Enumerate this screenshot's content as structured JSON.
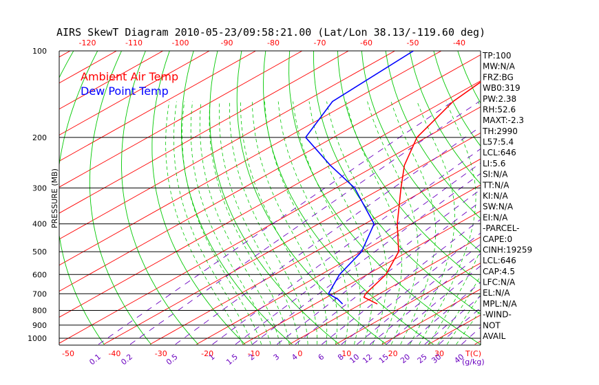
{
  "chart_data": {
    "type": "line",
    "title": "AIRS SkewT Diagram 2010-05-23/09:58:21.00 (Lat/Lon 38.13/-119.60 deg)",
    "ylabel": "PRESSURE (MB)",
    "xlabel_bottom_right": "T(C)",
    "mixing_ratio_unit": "(g/kg)",
    "y_scale": "log",
    "ylim": [
      1050,
      100
    ],
    "xlim_bottom": [
      -50,
      40
    ],
    "pressure_ticks": [
      100,
      200,
      300,
      400,
      500,
      600,
      700,
      800,
      900,
      1000
    ],
    "pressure_tick_labels": [
      "100",
      "200",
      "300",
      "400",
      "500",
      "600",
      "700",
      "800",
      "900",
      "1000"
    ],
    "bottom_temp_ticks": [
      -50,
      -40,
      -30,
      -20,
      -10,
      0,
      10,
      20,
      30
    ],
    "bottom_temp_labels": [
      "-50",
      "-40",
      "-30",
      "-20",
      "-10",
      "0",
      "10",
      "20",
      "30"
    ],
    "top_temp_ticks": [
      -120,
      -110,
      -100,
      -90,
      -80,
      -70,
      -60,
      -50,
      -40
    ],
    "top_temp_labels": [
      "-120",
      "-110",
      "-100",
      "-90",
      "-80",
      "-70",
      "-60",
      "-50",
      "-40"
    ],
    "mixing_ratio_lines": [
      0.1,
      0.2,
      0.5,
      1,
      1.5,
      2,
      3,
      4,
      6,
      8,
      10,
      12,
      15,
      20,
      25,
      30,
      40
    ],
    "mixing_ratio_labels": [
      "0.1",
      "0.2",
      "0.5",
      "1",
      "1.5",
      "2",
      "3",
      "4",
      "6",
      "8",
      "10",
      "12",
      "15",
      "20",
      "25",
      "30",
      "40"
    ],
    "series": [
      {
        "name": "Ambient Air Temp",
        "color": "#ff0000",
        "points": [
          {
            "p": 760,
            "t": 3.5
          },
          {
            "p": 720,
            "t": -2
          },
          {
            "p": 700,
            "t": -3
          },
          {
            "p": 600,
            "t": -6
          },
          {
            "p": 500,
            "t": -12
          },
          {
            "p": 400,
            "t": -23
          },
          {
            "p": 300,
            "t": -36
          },
          {
            "p": 250,
            "t": -44
          },
          {
            "p": 200,
            "t": -52
          },
          {
            "p": 150,
            "t": -58
          },
          {
            "p": 100,
            "t": -62
          }
        ]
      },
      {
        "name": "Dew Point Temp",
        "color": "#0000ff",
        "points": [
          {
            "p": 760,
            "t": -4
          },
          {
            "p": 730,
            "t": -7
          },
          {
            "p": 700,
            "t": -11
          },
          {
            "p": 600,
            "t": -16
          },
          {
            "p": 500,
            "t": -20
          },
          {
            "p": 400,
            "t": -28
          },
          {
            "p": 300,
            "t": -46
          },
          {
            "p": 250,
            "t": -60
          },
          {
            "p": 200,
            "t": -76
          },
          {
            "p": 150,
            "t": -84
          },
          {
            "p": 100,
            "t": -86
          }
        ]
      }
    ],
    "colors": {
      "isotherm": "#ff0000",
      "dry_adiabat": "#00c800",
      "moist_adiabat": "#00c800",
      "mixing_ratio": "#6a00c0",
      "isobar": "#000000",
      "bottom_axis": "#ff0000",
      "top_axis": "#ff0000"
    },
    "indices": [
      "TP:100",
      "MW:N/A",
      "FRZ:BG",
      "WB0:319",
      "PW:2.38",
      "RH:52.6",
      "MAXT:-2.3",
      "TH:2990",
      "L57:5.4",
      "LCL:646",
      "LI:5.6",
      "SI:N/A",
      "TT:N/A",
      "KI:N/A",
      "SW:N/A",
      "EI:N/A",
      "-PARCEL-",
      "CAPE:0",
      "CINH:19259",
      "LCL:646",
      "CAP:4.5",
      "LFC:N/A",
      "EL:N/A",
      "MPL:N/A",
      "-WIND-",
      "NOT",
      "AVAIL"
    ],
    "legend_placement": "top-left",
    "grid": true
  }
}
